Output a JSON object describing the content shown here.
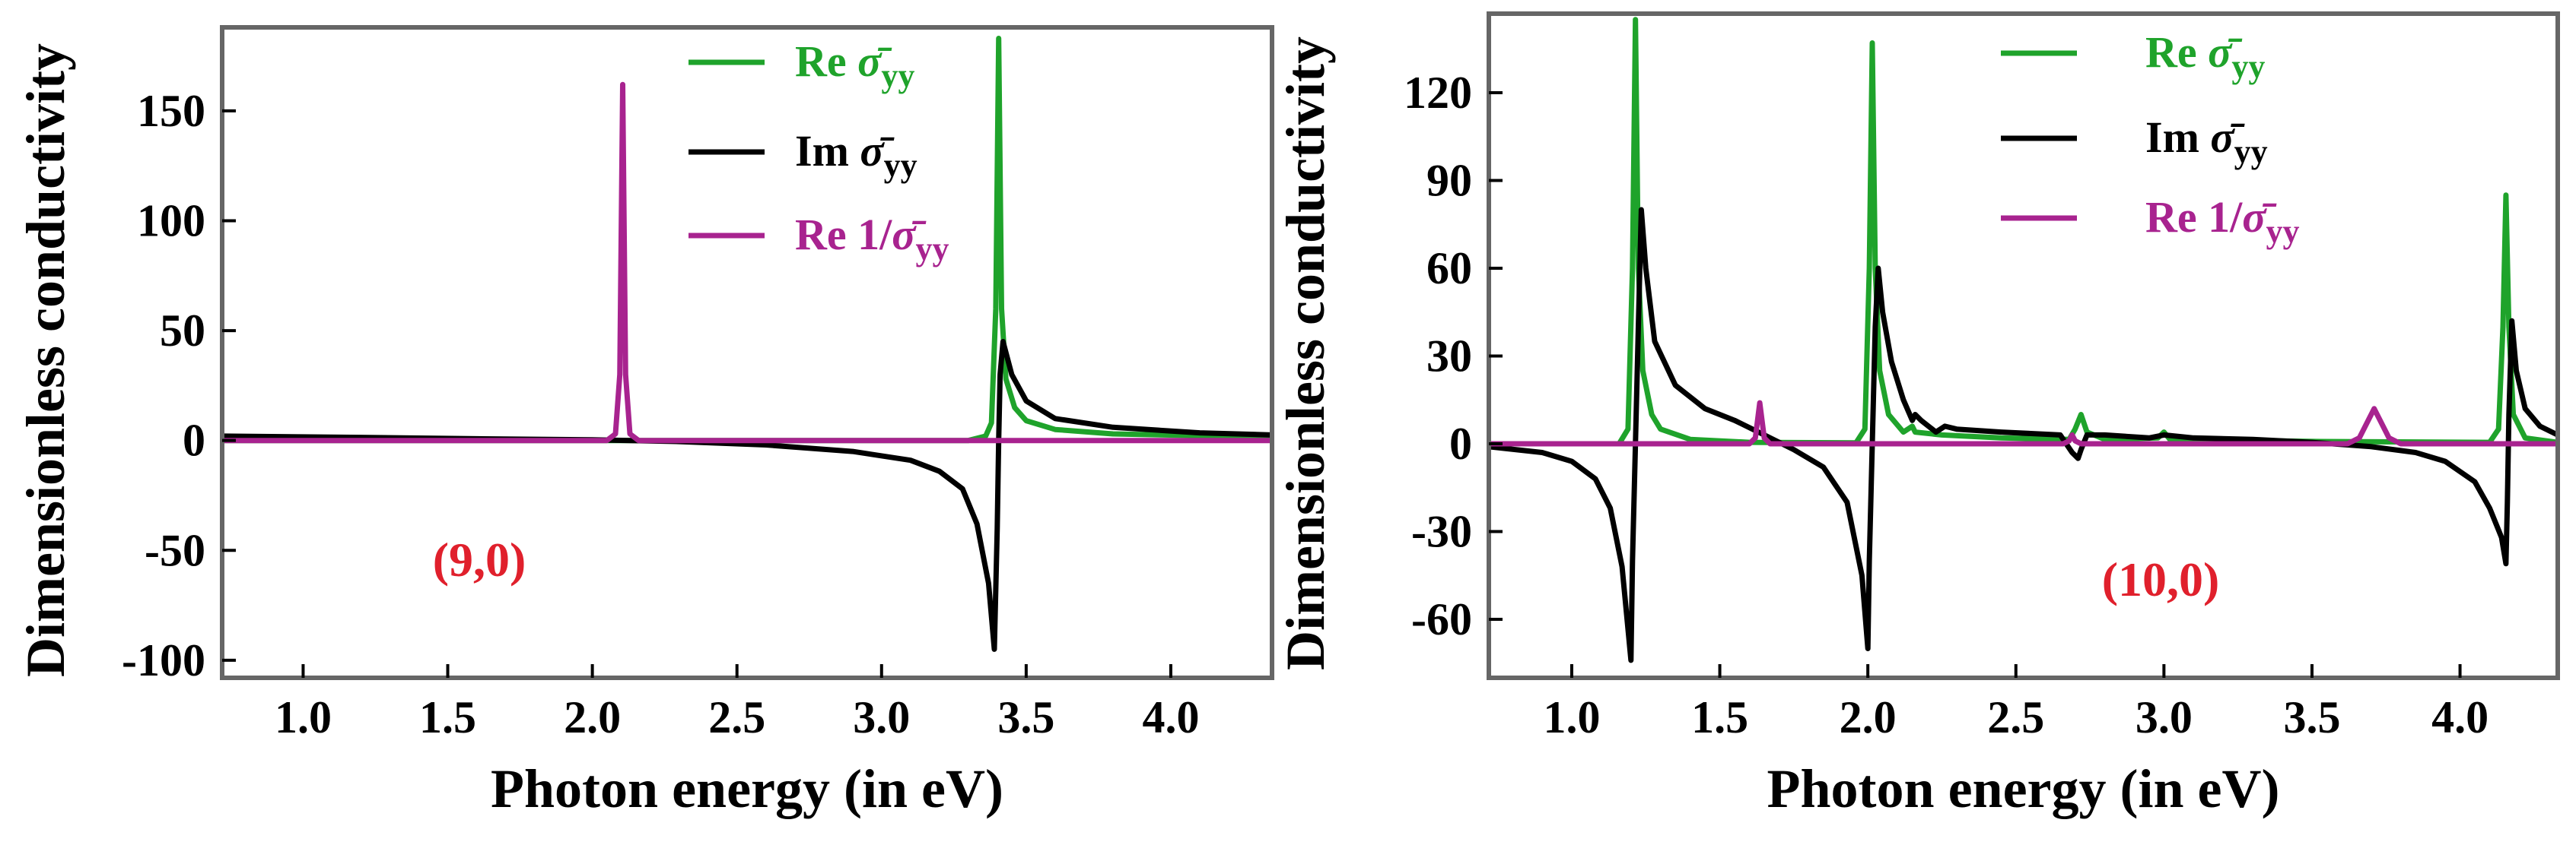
{
  "chart_data": [
    {
      "type": "line",
      "panel": "left",
      "xlabel": "Photon energy (in eV)",
      "ylabel": "Dimensionless conductivity",
      "xlim": [
        0.72,
        4.35
      ],
      "ylim": [
        -108,
        188
      ],
      "xticks": [
        1.0,
        1.5,
        2.0,
        2.5,
        3.0,
        3.5,
        4.0
      ],
      "yticks": [
        -100,
        -50,
        0,
        50,
        100,
        150
      ],
      "annotation": {
        "text": "(9,0)",
        "color": "#e0202c"
      },
      "series": [
        {
          "name": "Re σ̄yy",
          "legend_prefix": "Re ",
          "legend_symbol": "σ̄",
          "legend_sub": "yy",
          "color": "#1fa32b",
          "points": [
            [
              0.72,
              0
            ],
            [
              3.3,
              0
            ],
            [
              3.36,
              2
            ],
            [
              3.38,
              8
            ],
            [
              3.395,
              60
            ],
            [
              3.405,
              183
            ],
            [
              3.415,
              60
            ],
            [
              3.43,
              28
            ],
            [
              3.46,
              15
            ],
            [
              3.5,
              9
            ],
            [
              3.6,
              5
            ],
            [
              3.8,
              3
            ],
            [
              4.1,
              2.2
            ],
            [
              4.35,
              2
            ]
          ]
        },
        {
          "name": "Im σ̄yy",
          "legend_prefix": "Im ",
          "legend_symbol": "σ̄",
          "legend_sub": "yy",
          "color": "#000000",
          "points": [
            [
              0.72,
              2
            ],
            [
              1.2,
              1.4
            ],
            [
              1.6,
              0.8
            ],
            [
              2.0,
              0.3
            ],
            [
              2.3,
              -0.5
            ],
            [
              2.6,
              -2
            ],
            [
              2.9,
              -5
            ],
            [
              3.1,
              -9
            ],
            [
              3.2,
              -14
            ],
            [
              3.28,
              -22
            ],
            [
              3.33,
              -38
            ],
            [
              3.37,
              -65
            ],
            [
              3.39,
              -95
            ],
            [
              3.4,
              -40
            ],
            [
              3.405,
              0
            ],
            [
              3.41,
              30
            ],
            [
              3.42,
              45
            ],
            [
              3.45,
              30
            ],
            [
              3.5,
              18
            ],
            [
              3.6,
              10
            ],
            [
              3.8,
              6
            ],
            [
              4.1,
              3.5
            ],
            [
              4.35,
              2.5
            ]
          ]
        },
        {
          "name": "Re 1/σ̄yy",
          "legend_prefix": "Re 1/",
          "legend_symbol": "σ̄",
          "legend_sub": "yy",
          "color": "#a8238f",
          "points": [
            [
              0.72,
              0
            ],
            [
              2.05,
              0
            ],
            [
              2.08,
              3
            ],
            [
              2.095,
              30
            ],
            [
              2.105,
              162
            ],
            [
              2.115,
              30
            ],
            [
              2.13,
              3
            ],
            [
              2.16,
              0
            ],
            [
              4.35,
              0
            ]
          ]
        }
      ]
    },
    {
      "type": "line",
      "panel": "right",
      "xlabel": "Photon energy (in eV)",
      "ylabel": "Dimensionless conductivity",
      "xlim": [
        0.72,
        4.33
      ],
      "ylim": [
        -80,
        147
      ],
      "xticks": [
        1.0,
        1.5,
        2.0,
        2.5,
        3.0,
        3.5,
        4.0
      ],
      "yticks": [
        -60,
        -30,
        0,
        30,
        60,
        90,
        120
      ],
      "annotation": {
        "text": "(10,0)",
        "color": "#e0202c"
      },
      "series": [
        {
          "name": "Re σ̄yy",
          "legend_prefix": "Re ",
          "legend_symbol": "σ̄",
          "legend_sub": "yy",
          "color": "#1fa32b",
          "points": [
            [
              0.72,
              0
            ],
            [
              1.16,
              0
            ],
            [
              1.19,
              5
            ],
            [
              1.205,
              60
            ],
            [
              1.215,
              145
            ],
            [
              1.225,
              60
            ],
            [
              1.24,
              25
            ],
            [
              1.27,
              10
            ],
            [
              1.3,
              5
            ],
            [
              1.4,
              1.5
            ],
            [
              1.6,
              0.5
            ],
            [
              1.96,
              0.3
            ],
            [
              1.99,
              5
            ],
            [
              2.005,
              60
            ],
            [
              2.015,
              137
            ],
            [
              2.025,
              60
            ],
            [
              2.04,
              25
            ],
            [
              2.07,
              10
            ],
            [
              2.12,
              4
            ],
            [
              2.15,
              6
            ],
            [
              2.16,
              4
            ],
            [
              2.25,
              3
            ],
            [
              2.45,
              2
            ],
            [
              2.68,
              1.5
            ],
            [
              2.7,
              5
            ],
            [
              2.72,
              10
            ],
            [
              2.74,
              4
            ],
            [
              2.8,
              1.5
            ],
            [
              2.98,
              2
            ],
            [
              3.0,
              4
            ],
            [
              3.02,
              1.5
            ],
            [
              3.5,
              0.8
            ],
            [
              4.1,
              0.5
            ],
            [
              4.13,
              5
            ],
            [
              4.145,
              40
            ],
            [
              4.155,
              85
            ],
            [
              4.165,
              40
            ],
            [
              4.18,
              10
            ],
            [
              4.22,
              2
            ],
            [
              4.33,
              0.5
            ]
          ]
        },
        {
          "name": "Im σ̄yy",
          "legend_prefix": "Im ",
          "legend_symbol": "σ̄",
          "legend_sub": "yy",
          "color": "#000000",
          "points": [
            [
              0.72,
              -1
            ],
            [
              0.9,
              -3
            ],
            [
              1.0,
              -6
            ],
            [
              1.08,
              -12
            ],
            [
              1.13,
              -22
            ],
            [
              1.17,
              -42
            ],
            [
              1.2,
              -74
            ],
            [
              1.205,
              -40
            ],
            [
              1.215,
              0
            ],
            [
              1.225,
              40
            ],
            [
              1.235,
              80
            ],
            [
              1.25,
              60
            ],
            [
              1.28,
              35
            ],
            [
              1.35,
              20
            ],
            [
              1.45,
              12
            ],
            [
              1.55,
              8
            ],
            [
              1.65,
              3
            ],
            [
              1.75,
              -2
            ],
            [
              1.85,
              -8
            ],
            [
              1.93,
              -20
            ],
            [
              1.98,
              -45
            ],
            [
              2.0,
              -70
            ],
            [
              2.005,
              -40
            ],
            [
              2.015,
              0
            ],
            [
              2.025,
              40
            ],
            [
              2.035,
              60
            ],
            [
              2.05,
              45
            ],
            [
              2.08,
              28
            ],
            [
              2.12,
              15
            ],
            [
              2.15,
              8
            ],
            [
              2.16,
              10
            ],
            [
              2.18,
              8
            ],
            [
              2.23,
              4
            ],
            [
              2.26,
              6
            ],
            [
              2.3,
              5
            ],
            [
              2.45,
              4
            ],
            [
              2.65,
              3
            ],
            [
              2.69,
              -3
            ],
            [
              2.71,
              -5
            ],
            [
              2.72,
              -2
            ],
            [
              2.74,
              3
            ],
            [
              2.8,
              3
            ],
            [
              2.95,
              2
            ],
            [
              3.0,
              3
            ],
            [
              3.1,
              2
            ],
            [
              3.3,
              1.5
            ],
            [
              3.5,
              0.5
            ],
            [
              3.7,
              -1
            ],
            [
              3.85,
              -3
            ],
            [
              3.95,
              -6
            ],
            [
              4.05,
              -13
            ],
            [
              4.1,
              -22
            ],
            [
              4.14,
              -32
            ],
            [
              4.155,
              -41
            ],
            [
              4.16,
              -20
            ],
            [
              4.165,
              10
            ],
            [
              4.175,
              42
            ],
            [
              4.19,
              25
            ],
            [
              4.22,
              12
            ],
            [
              4.27,
              6
            ],
            [
              4.33,
              3
            ]
          ]
        },
        {
          "name": "Re 1/σ̄yy",
          "legend_prefix": "Re 1/",
          "legend_symbol": "σ̄",
          "legend_sub": "yy",
          "color": "#a8238f",
          "points": [
            [
              0.72,
              0
            ],
            [
              1.6,
              0
            ],
            [
              1.62,
              2
            ],
            [
              1.635,
              14
            ],
            [
              1.65,
              2
            ],
            [
              1.67,
              0
            ],
            [
              2.66,
              0
            ],
            [
              2.68,
              1
            ],
            [
              2.69,
              3
            ],
            [
              2.7,
              1
            ],
            [
              2.72,
              0
            ],
            [
              3.62,
              0
            ],
            [
              3.66,
              2
            ],
            [
              3.69,
              8
            ],
            [
              3.71,
              12
            ],
            [
              3.73,
              8
            ],
            [
              3.76,
              2
            ],
            [
              3.8,
              0
            ],
            [
              4.33,
              0
            ]
          ]
        }
      ]
    }
  ]
}
